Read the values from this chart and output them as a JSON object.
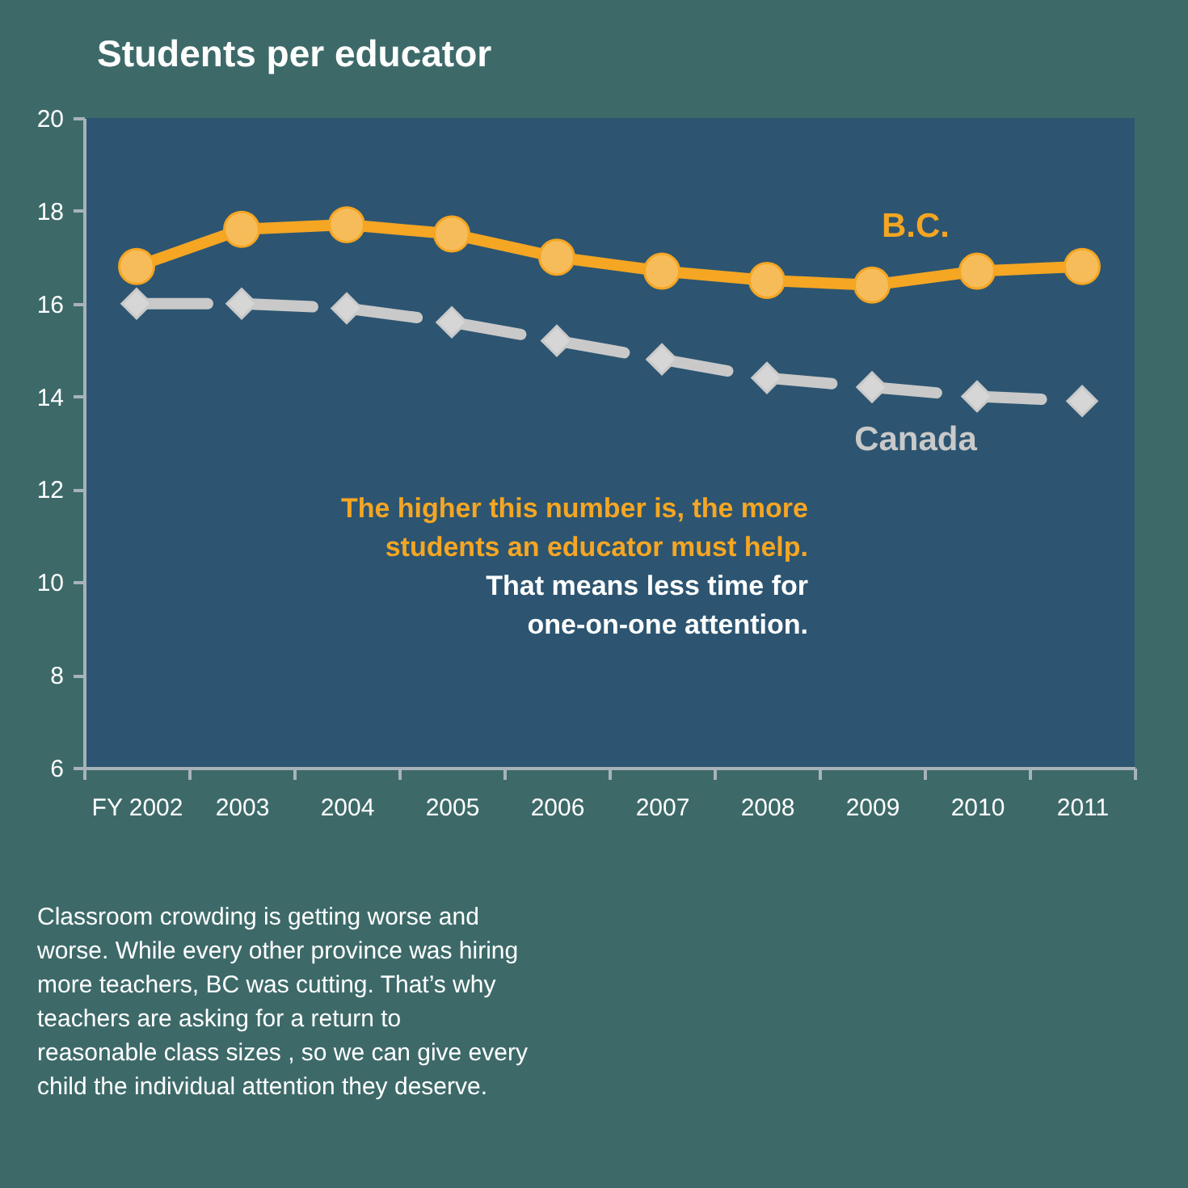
{
  "chart_data": {
    "type": "line",
    "title": "Students per educator",
    "categories": [
      "FY 2002",
      "2003",
      "2004",
      "2005",
      "2006",
      "2007",
      "2008",
      "2009",
      "2010",
      "2011"
    ],
    "series": [
      {
        "name": "B.C.",
        "color": "#f5a623",
        "marker": "circle",
        "line_style": "solid",
        "values": [
          16.8,
          17.6,
          17.7,
          17.5,
          17.0,
          16.7,
          16.5,
          16.4,
          16.7,
          16.8
        ]
      },
      {
        "name": "Canada",
        "color": "#c9c9c9",
        "marker": "diamond",
        "line_style": "dashed",
        "values": [
          16.0,
          16.0,
          15.9,
          15.6,
          15.2,
          14.8,
          14.4,
          14.2,
          14.0,
          13.9
        ]
      }
    ],
    "ylim": [
      6,
      20
    ],
    "yticks": [
      6,
      8,
      10,
      12,
      14,
      16,
      18,
      20
    ],
    "grid": false,
    "annotations": [
      "The higher this number is, the more\nstudents an educator must help.",
      "That means less time for\none-on-one attention.",
      "Classroom crowding is getting worse and\nworse. While every other province was hiring\nmore teachers, BC was cutting. That’s why\nteachers are asking for a return to\nreasonable class sizes , so we can give every\nchild the individual attention they deserve."
    ]
  }
}
